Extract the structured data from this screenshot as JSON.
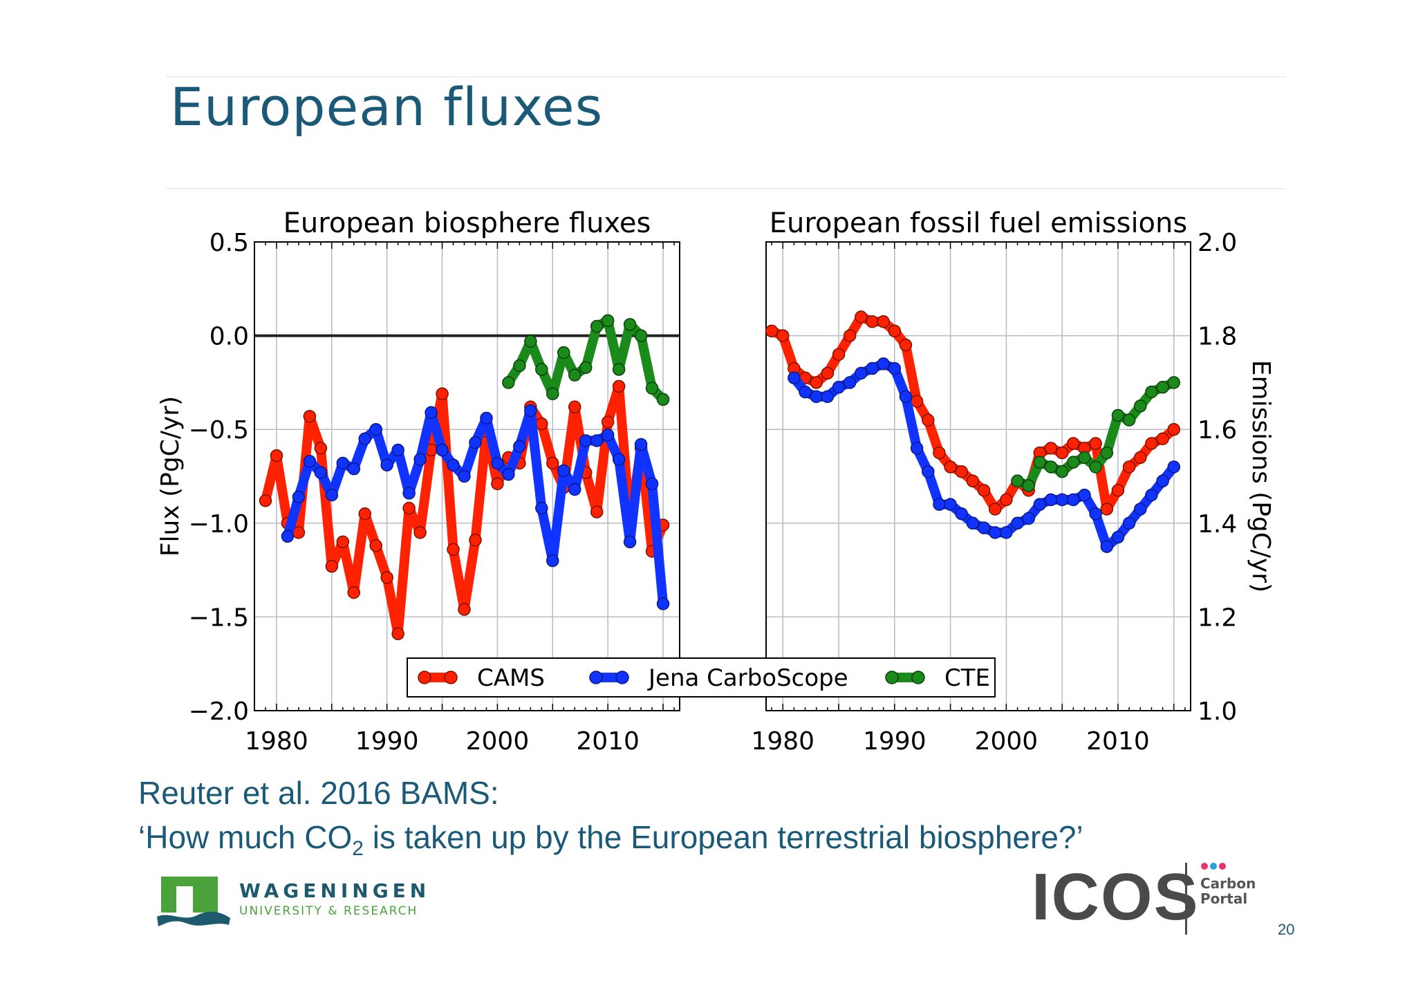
{
  "slide": {
    "title": "European fluxes",
    "caption_line1": "Reuter et al. 2016 BAMS:",
    "caption_line2_pre": "‘How much CO",
    "caption_line2_sub": "2",
    "caption_line2_post": " is taken up by the European terrestrial biosphere?’",
    "page_number": "20"
  },
  "logos": {
    "wur_name": "WAGENINGEN",
    "wur_sub": "UNIVERSITY & RESEARCH",
    "icos_name": "ICOS",
    "icos_sub1": "Carbon",
    "icos_sub2": "Portal"
  },
  "colors": {
    "title": "#1a5a78",
    "cams": "#ff2200",
    "jena": "#1133ff",
    "cte": "#1a8a1a",
    "wur_green": "#4aa23a",
    "wur_blue": "#1d5a6e"
  },
  "chart_data": [
    {
      "type": "line",
      "title": "European biosphere fluxes",
      "ylabel": "Flux (PgC/yr)",
      "xlim": [
        1978,
        2016.5
      ],
      "ylim": [
        -2.0,
        0.5
      ],
      "xticks": [
        1980,
        1990,
        2000,
        2010
      ],
      "yticks": [
        0.5,
        0.0,
        -0.5,
        -1.0,
        -1.5,
        -2.0
      ],
      "ytick_labels": [
        "0.5",
        "0.0",
        "−0.5",
        "−1.0",
        "−1.5",
        "−2.0"
      ],
      "grid": true,
      "zero_line": 0.0,
      "series": [
        {
          "name": "CAMS",
          "x": [
            1979,
            1980,
            1981,
            1982,
            1983,
            1984,
            1985,
            1986,
            1987,
            1988,
            1989,
            1990,
            1991,
            1992,
            1993,
            1994,
            1995,
            1996,
            1997,
            1998,
            1999,
            2000,
            2001,
            2002,
            2003,
            2004,
            2005,
            2006,
            2007,
            2008,
            2009,
            2010,
            2011,
            2012,
            2013,
            2014,
            2015
          ],
          "y": [
            -0.88,
            -0.64,
            -1.0,
            -1.05,
            -0.43,
            -0.6,
            -1.23,
            -1.1,
            -1.37,
            -0.95,
            -1.12,
            -1.29,
            -1.59,
            -0.92,
            -1.05,
            -0.61,
            -0.31,
            -1.14,
            -1.46,
            -1.09,
            -0.51,
            -0.79,
            -0.65,
            -0.68,
            -0.38,
            -0.47,
            -0.68,
            -0.81,
            -0.38,
            -0.73,
            -0.94,
            -0.46,
            -0.27,
            -1.0,
            -0.6,
            -1.15,
            -1.01
          ]
        },
        {
          "name": "Jena CarboScope",
          "x": [
            1981,
            1982,
            1983,
            1984,
            1985,
            1986,
            1987,
            1988,
            1989,
            1990,
            1991,
            1992,
            1993,
            1994,
            1995,
            1996,
            1997,
            1998,
            1999,
            2000,
            2001,
            2002,
            2003,
            2004,
            2005,
            2006,
            2007,
            2008,
            2009,
            2010,
            2011,
            2012,
            2013,
            2014,
            2015
          ],
          "y": [
            -1.07,
            -0.86,
            -0.67,
            -0.73,
            -0.85,
            -0.68,
            -0.71,
            -0.55,
            -0.5,
            -0.69,
            -0.61,
            -0.84,
            -0.66,
            -0.41,
            -0.61,
            -0.69,
            -0.75,
            -0.57,
            -0.44,
            -0.68,
            -0.74,
            -0.59,
            -0.4,
            -0.92,
            -1.2,
            -0.72,
            -0.82,
            -0.56,
            -0.56,
            -0.53,
            -0.66,
            -1.1,
            -0.58,
            -0.79,
            -1.43
          ]
        },
        {
          "name": "CTE",
          "x": [
            2001,
            2002,
            2003,
            2004,
            2005,
            2006,
            2007,
            2008,
            2009,
            2010,
            2011,
            2012,
            2013,
            2014,
            2015
          ],
          "y": [
            -0.25,
            -0.16,
            -0.03,
            -0.18,
            -0.31,
            -0.09,
            -0.21,
            -0.17,
            0.05,
            0.08,
            -0.18,
            0.06,
            0.0,
            -0.28,
            -0.34
          ]
        }
      ]
    },
    {
      "type": "line",
      "title": "European fossil fuel emissions",
      "ylabel": "Emissions (PgC/yr)",
      "xlim": [
        1978.5,
        2016.5
      ],
      "ylim": [
        1.0,
        2.0
      ],
      "xticks": [
        1980,
        1990,
        2000,
        2010
      ],
      "yticks": [
        2.0,
        1.8,
        1.6,
        1.4,
        1.2,
        1.0
      ],
      "ytick_labels": [
        "2.0",
        "1.8",
        "1.6",
        "1.4",
        "1.2",
        "1.0"
      ],
      "grid": true,
      "series": [
        {
          "name": "CAMS",
          "x": [
            1979,
            1980,
            1981,
            1982,
            1983,
            1984,
            1985,
            1986,
            1987,
            1988,
            1989,
            1990,
            1991,
            1992,
            1993,
            1994,
            1995,
            1996,
            1997,
            1998,
            1999,
            2000,
            2001,
            2002,
            2003,
            2004,
            2005,
            2006,
            2007,
            2008,
            2009,
            2010,
            2011,
            2012,
            2013,
            2014,
            2015
          ],
          "y": [
            1.81,
            1.8,
            1.73,
            1.71,
            1.7,
            1.72,
            1.76,
            1.8,
            1.84,
            1.83,
            1.83,
            1.81,
            1.78,
            1.66,
            1.62,
            1.55,
            1.52,
            1.51,
            1.49,
            1.47,
            1.43,
            1.45,
            1.49,
            1.47,
            1.55,
            1.56,
            1.55,
            1.57,
            1.56,
            1.57,
            1.43,
            1.47,
            1.52,
            1.54,
            1.57,
            1.58,
            1.6
          ]
        },
        {
          "name": "Jena CarboScope",
          "x": [
            1981,
            1982,
            1983,
            1984,
            1985,
            1986,
            1987,
            1988,
            1989,
            1990,
            1991,
            1992,
            1993,
            1994,
            1995,
            1996,
            1997,
            1998,
            1999,
            2000,
            2001,
            2002,
            2003,
            2004,
            2005,
            2006,
            2007,
            2008,
            2009,
            2010,
            2011,
            2012,
            2013,
            2014,
            2015
          ],
          "y": [
            1.71,
            1.68,
            1.67,
            1.67,
            1.69,
            1.7,
            1.72,
            1.73,
            1.74,
            1.73,
            1.67,
            1.56,
            1.51,
            1.44,
            1.44,
            1.42,
            1.4,
            1.39,
            1.38,
            1.38,
            1.4,
            1.41,
            1.44,
            1.45,
            1.45,
            1.45,
            1.46,
            1.42,
            1.35,
            1.37,
            1.4,
            1.43,
            1.46,
            1.49,
            1.52
          ]
        },
        {
          "name": "CTE",
          "x": [
            2001,
            2002,
            2003,
            2004,
            2005,
            2006,
            2007,
            2008,
            2009,
            2010,
            2011,
            2012,
            2013,
            2014,
            2015
          ],
          "y": [
            1.49,
            1.48,
            1.53,
            1.52,
            1.51,
            1.53,
            1.54,
            1.52,
            1.55,
            1.63,
            1.62,
            1.65,
            1.68,
            1.69,
            1.7
          ]
        }
      ]
    }
  ],
  "legend": {
    "placement": "bottom-center",
    "items": [
      "CAMS",
      "Jena CarboScope",
      "CTE"
    ]
  }
}
